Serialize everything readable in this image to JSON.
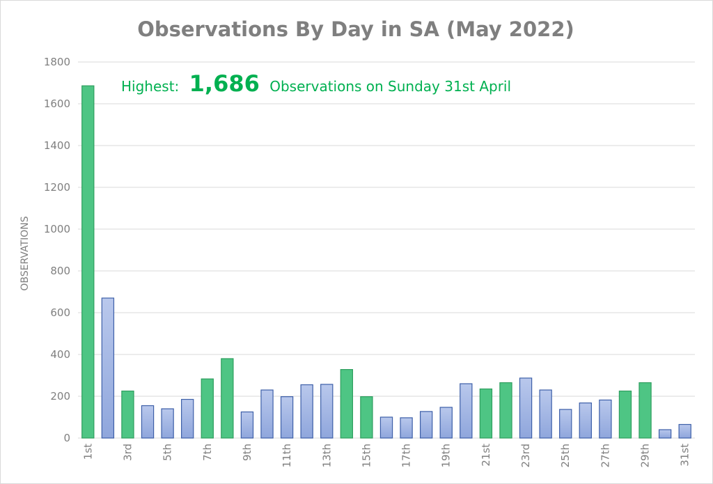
{
  "chart_data": {
    "type": "bar",
    "title": "Observations By Day in SA (May 2022)",
    "ylabel": "OBSERVATIONS",
    "xlabel": "",
    "ylim": [
      0,
      1800
    ],
    "yticks": [
      0,
      200,
      400,
      600,
      800,
      1000,
      1200,
      1400,
      1600,
      1800
    ],
    "grid": true,
    "categories": [
      "1st",
      "2nd",
      "3rd",
      "4th",
      "5th",
      "6th",
      "7th",
      "8th",
      "9th",
      "10th",
      "11th",
      "12th",
      "13th",
      "14th",
      "15th",
      "16th",
      "17th",
      "18th",
      "19th",
      "20th",
      "21st",
      "22nd",
      "23rd",
      "24th",
      "25th",
      "26th",
      "27th",
      "28th",
      "29th",
      "30th",
      "31st"
    ],
    "x_tick_labels": [
      "1st",
      "3rd",
      "5th",
      "7th",
      "9th",
      "11th",
      "13th",
      "15th",
      "17th",
      "19th",
      "21st",
      "23rd",
      "25th",
      "27th",
      "29th",
      "31st"
    ],
    "values": [
      1686,
      670,
      225,
      155,
      140,
      185,
      283,
      380,
      125,
      230,
      198,
      255,
      257,
      328,
      198,
      100,
      97,
      127,
      147,
      260,
      235,
      265,
      287,
      230,
      137,
      168,
      182,
      225,
      265,
      40,
      65
    ],
    "weekend_days": [
      "1st",
      "3rd",
      "7th",
      "8th",
      "14th",
      "15th",
      "21st",
      "22nd",
      "28th",
      "29th"
    ],
    "colors": {
      "weekend_fill": "#4ec584",
      "weekend_stroke": "#2e9e5e",
      "weekday_fill_top": "#b9c8ec",
      "weekday_fill_bottom": "#8fa6dc",
      "weekday_stroke": "#3d5fa8",
      "grid": "#d9d9d9",
      "text": "#7f7f7f",
      "annotation": "#00b050"
    },
    "annotation": {
      "prefix": "Highest:",
      "value": "1,686",
      "suffix": "Observations on Sunday 31st April"
    }
  }
}
